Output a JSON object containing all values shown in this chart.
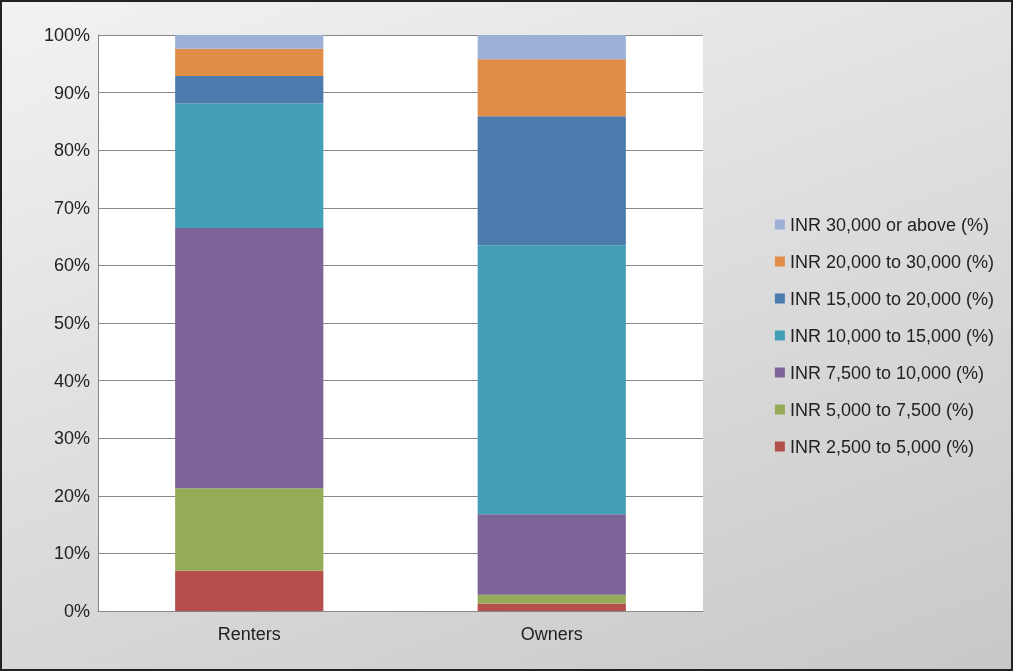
{
  "chart_data": {
    "type": "bar",
    "stacked": true,
    "categories": [
      "Renters",
      "Owners"
    ],
    "series": [
      {
        "name": "INR 2,500 to 5,000 (%)",
        "color": "#b54f4c",
        "values": [
          7.0,
          1.3
        ]
      },
      {
        "name": "INR 5,000 to 7,500 (%)",
        "color": "#95ab57",
        "values": [
          14.3,
          1.5
        ]
      },
      {
        "name": "INR 7,500 to 10,000 (%)",
        "color": "#7d6498",
        "values": [
          45.2,
          14.0
        ]
      },
      {
        "name": "INR 10,000 to 15,000 (%)",
        "color": "#44a0b6",
        "values": [
          21.6,
          46.7
        ]
      },
      {
        "name": "INR 15,000 to 20,000 (%)",
        "color": "#4b7cad",
        "values": [
          4.8,
          22.4
        ]
      },
      {
        "name": "INR 20,000 to 30,000 (%)",
        "color": "#df8d47",
        "values": [
          4.7,
          9.9
        ]
      },
      {
        "name": "INR 30,000 or above (%)",
        "color": "#9db1d6",
        "values": [
          2.4,
          4.2
        ]
      }
    ],
    "ylim": [
      0,
      100
    ],
    "yticks": [
      {
        "value": 0,
        "label": "0%"
      },
      {
        "value": 10,
        "label": "10%"
      },
      {
        "value": 20,
        "label": "20%"
      },
      {
        "value": 30,
        "label": "30%"
      },
      {
        "value": 40,
        "label": "40%"
      },
      {
        "value": 50,
        "label": "50%"
      },
      {
        "value": 60,
        "label": "60%"
      },
      {
        "value": 70,
        "label": "70%"
      },
      {
        "value": 80,
        "label": "80%"
      },
      {
        "value": 90,
        "label": "90%"
      },
      {
        "value": 100,
        "label": "100%"
      }
    ],
    "grid": "y",
    "legend": "right"
  }
}
